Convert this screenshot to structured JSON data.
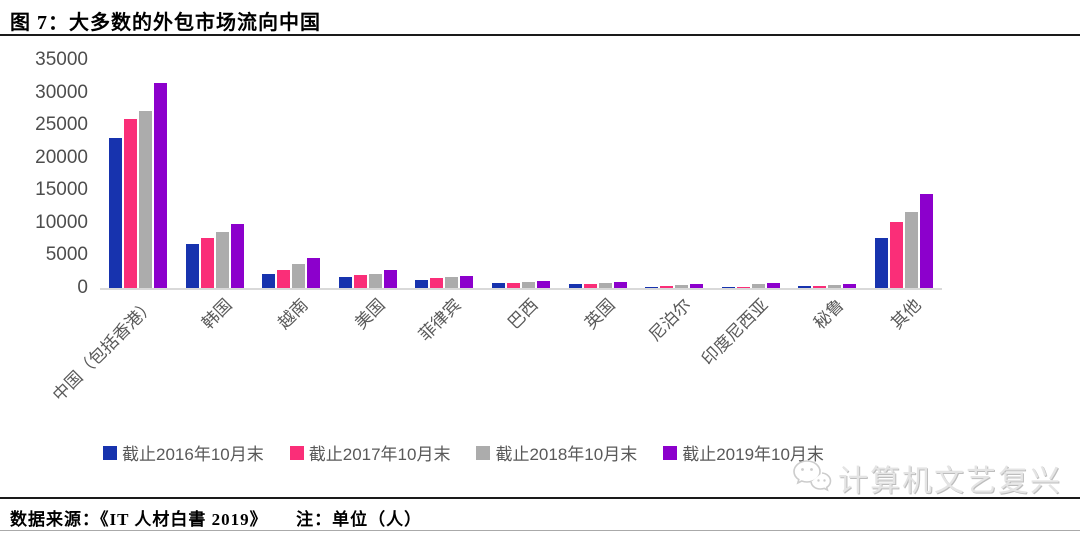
{
  "header": {
    "title": "图 7：大多数的外包市场流向中国"
  },
  "footer": {
    "source": "数据来源：《IT 人材白書 2019》",
    "note": "注：单位（人）"
  },
  "watermark": {
    "text": "计算机文艺复兴",
    "icon": "wechat-icon"
  },
  "chart_data": {
    "type": "bar",
    "title": "图 7：大多数的外包市场流向中国",
    "categories": [
      "中国（包括香港）",
      "韩国",
      "越南",
      "美国",
      "菲律宾",
      "巴西",
      "英国",
      "尼泊尔",
      "印度尼西亚",
      "秘鲁",
      "其他"
    ],
    "series": [
      {
        "name": "截止2016年10月末",
        "color": "#1733AE",
        "values": [
          23000,
          6700,
          2100,
          1700,
          1200,
          800,
          650,
          200,
          30,
          250,
          7600
        ]
      },
      {
        "name": "截止2017年10月末",
        "color": "#FA2E78",
        "values": [
          26000,
          7700,
          2800,
          2000,
          1500,
          750,
          580,
          350,
          60,
          350,
          10200
        ]
      },
      {
        "name": "截止2018年10月末",
        "color": "#ACACAC",
        "values": [
          27200,
          8600,
          3700,
          2200,
          1700,
          950,
          820,
          500,
          550,
          400,
          11600
        ]
      },
      {
        "name": "截止2019年10月末",
        "color": "#8C00CC",
        "values": [
          31500,
          9800,
          4600,
          2700,
          1900,
          1000,
          870,
          680,
          700,
          550,
          14500
        ]
      }
    ],
    "xlabel": "",
    "ylabel": "",
    "ylim": [
      0,
      35000
    ],
    "ytick_step": 5000,
    "yticks": [
      0,
      5000,
      10000,
      15000,
      20000,
      25000,
      30000,
      35000
    ],
    "grid": false,
    "legend_position": "bottom",
    "unit": "人"
  }
}
